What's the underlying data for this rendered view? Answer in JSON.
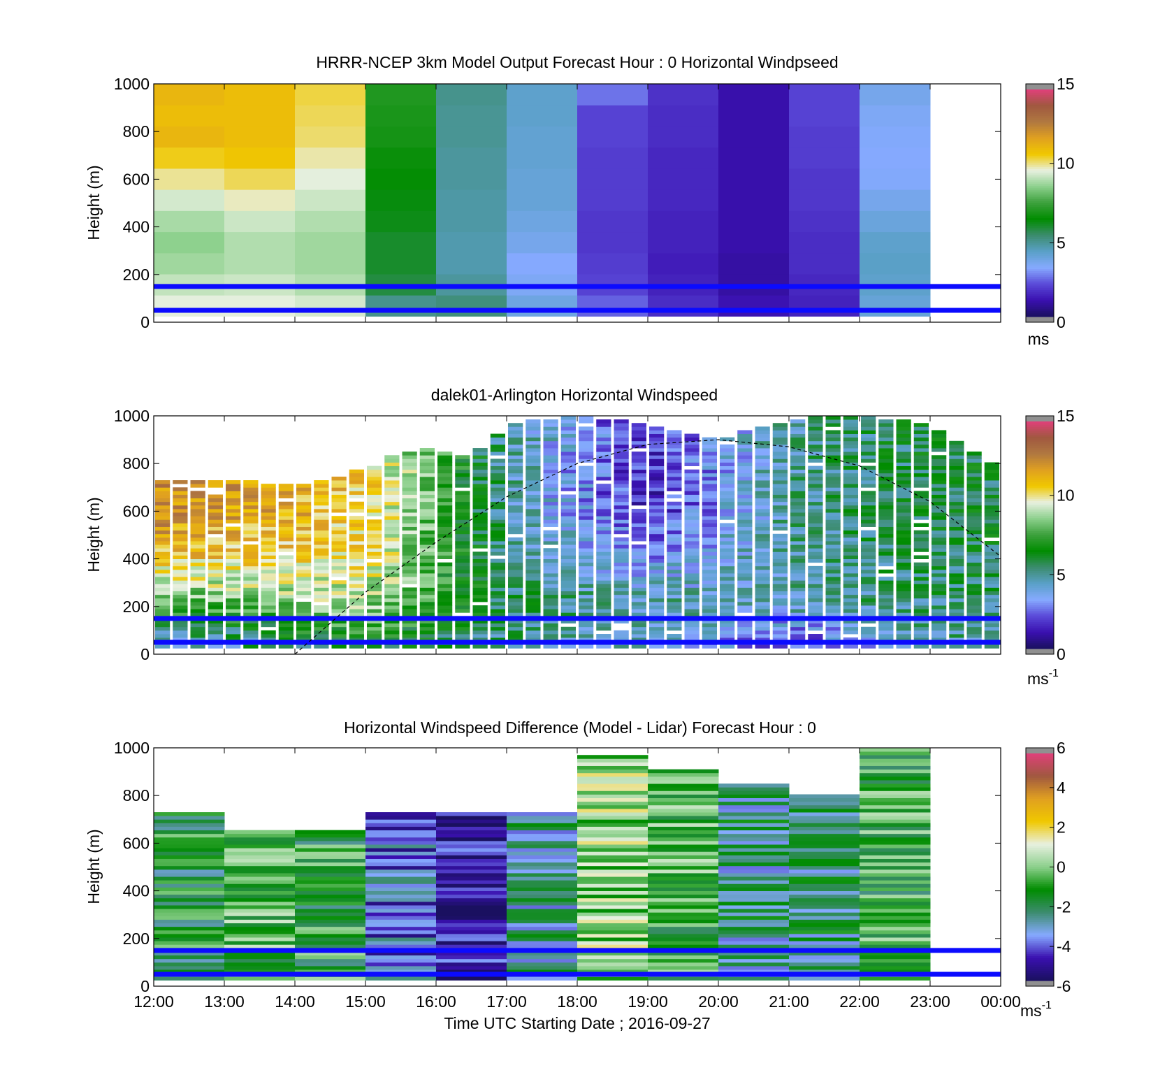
{
  "colors": {
    "overlay_lines": "#0b0bff",
    "boundary_layer_line": "#000000",
    "colormap_speed": [
      "#1a1060",
      "#3a10b0",
      "#5a4ad8",
      "#86aaff",
      "#5aa0c8",
      "#3c8c6e",
      "#008c00",
      "#3ca03c",
      "#8cd08c",
      "#e8f0e0",
      "#f0c800",
      "#e0a020",
      "#b07840",
      "#a05840",
      "#e0407a"
    ],
    "colormap_diff": [
      "#1a1060",
      "#3a10b0",
      "#86aaff",
      "#3c8c6e",
      "#008c00",
      "#8cd08c",
      "#e8f0e0",
      "#f0c800",
      "#e0a020",
      "#a05840",
      "#e0407a"
    ],
    "colorbar_end": "#909090"
  },
  "chart_data": [
    {
      "type": "heatmap",
      "title": "HRRR-NCEP 3km Model Output   Forecast Hour : 0 Horizontal Windpseed",
      "xlabel": "",
      "ylabel": "Height (m)",
      "x_ticks": [
        "12:00",
        "13:00",
        "14:00",
        "15:00",
        "16:00",
        "17:00",
        "18:00",
        "19:00",
        "20:00",
        "21:00",
        "22:00",
        "23:00",
        "00:00"
      ],
      "x_tick_labels_shown": false,
      "xlim_hours": [
        12,
        24
      ],
      "ylim": [
        0,
        1000
      ],
      "y_ticks": [
        0,
        200,
        400,
        600,
        800,
        1000
      ],
      "colorbar": {
        "min": 0,
        "max": 15,
        "ticks": [
          "0",
          "5",
          "10",
          "15"
        ],
        "unit": "ms"
      },
      "overlay_lines_m": [
        150,
        50
      ],
      "hours": [
        12,
        13,
        14,
        15,
        16,
        17,
        18,
        19,
        20,
        21,
        22
      ],
      "values_by_hour": [
        [
          9.6,
          9.2,
          8.8,
          8.6,
          8.9,
          9.4,
          10.0,
          10.6,
          11.2,
          11.0,
          11.2
        ],
        [
          9.6,
          9.3,
          9.0,
          9.0,
          9.3,
          9.8,
          10.3,
          10.8,
          11.0,
          11.0,
          11.0
        ],
        [
          9.4,
          9.0,
          8.8,
          8.8,
          9.0,
          9.3,
          9.6,
          9.9,
          10.2,
          10.3,
          10.4
        ],
        [
          5.0,
          5.8,
          6.0,
          6.0,
          6.2,
          6.3,
          6.5,
          6.6,
          6.8,
          6.9,
          7.0
        ],
        [
          5.2,
          4.8,
          4.6,
          4.6,
          4.7,
          4.7,
          4.8,
          4.8,
          4.9,
          4.9,
          5.0
        ],
        [
          3.8,
          3.4,
          3.2,
          3.6,
          3.8,
          4.0,
          4.0,
          4.1,
          4.1,
          4.2,
          4.2
        ],
        [
          2.4,
          2.0,
          1.9,
          1.8,
          1.8,
          1.9,
          1.9,
          1.9,
          2.0,
          2.0,
          2.6
        ],
        [
          1.6,
          1.4,
          1.3,
          1.4,
          1.4,
          1.5,
          1.5,
          1.5,
          1.6,
          1.6,
          1.7
        ],
        [
          1.1,
          0.9,
          0.9,
          1.0,
          1.0,
          1.0,
          1.0,
          1.0,
          1.0,
          1.0,
          1.0
        ],
        [
          1.4,
          1.5,
          1.6,
          1.6,
          1.7,
          1.8,
          1.8,
          1.9,
          1.9,
          2.0,
          2.0
        ],
        [
          4.0,
          4.2,
          4.3,
          4.2,
          3.9,
          3.6,
          3.3,
          3.2,
          3.3,
          3.4,
          3.6
        ]
      ]
    },
    {
      "type": "heatmap",
      "title": "dalek01-Arlington  Horizontal Windspeed",
      "xlabel": "",
      "ylabel": "Height (m)",
      "x_ticks": [
        "12:00",
        "13:00",
        "14:00",
        "15:00",
        "16:00",
        "17:00",
        "18:00",
        "19:00",
        "20:00",
        "21:00",
        "22:00",
        "23:00",
        "00:00"
      ],
      "x_tick_labels_shown": false,
      "xlim_hours": [
        12,
        24
      ],
      "ylim": [
        0,
        1000
      ],
      "y_ticks": [
        0,
        200,
        400,
        600,
        800,
        1000
      ],
      "colorbar": {
        "min": 0,
        "max": 15,
        "ticks": [
          "0",
          "5",
          "10",
          "15"
        ],
        "unit": "ms",
        "unit_sup": "-1"
      },
      "overlay_lines_m": [
        150,
        50
      ],
      "boundary_layer_curve": {
        "style": "dashed",
        "hours": [
          14.0,
          15.0,
          16.0,
          17.0,
          18.0,
          19.0,
          20.0,
          21.0,
          22.0,
          23.0,
          24.0
        ],
        "height_m": [
          0,
          260,
          470,
          660,
          800,
          880,
          900,
          870,
          790,
          640,
          410
        ]
      },
      "top_of_data_m": [
        [
          12.0,
          730
        ],
        [
          13.0,
          725
        ],
        [
          14.0,
          700
        ],
        [
          15.0,
          770
        ],
        [
          15.5,
          840
        ],
        [
          16.0,
          860
        ],
        [
          16.5,
          820
        ],
        [
          17.0,
          960
        ],
        [
          18.0,
          1000
        ],
        [
          19.0,
          960
        ],
        [
          20.0,
          900
        ],
        [
          21.0,
          980
        ],
        [
          22.0,
          1000
        ],
        [
          23.0,
          960
        ],
        [
          23.9,
          800
        ]
      ],
      "hourly_profile_samples": [
        {
          "hour": 12,
          "heights_m": [
            50,
            200,
            400,
            600
          ],
          "values": [
            3.8,
            7.5,
            10.8,
            12.5
          ]
        },
        {
          "hour": 15,
          "heights_m": [
            50,
            200,
            400,
            600
          ],
          "values": [
            6.5,
            8.8,
            10.2,
            10.6
          ]
        },
        {
          "hour": 17,
          "heights_m": [
            50,
            200,
            400,
            600
          ],
          "values": [
            5.0,
            5.5,
            5.0,
            4.8
          ]
        },
        {
          "hour": 19,
          "heights_m": [
            50,
            200,
            400,
            600
          ],
          "values": [
            4.2,
            4.6,
            3.0,
            1.4
          ]
        },
        {
          "hour": 21,
          "heights_m": [
            50,
            200,
            400,
            600
          ],
          "values": [
            2.0,
            4.5,
            4.6,
            4.8
          ]
        },
        {
          "hour": 23,
          "heights_m": [
            50,
            200,
            400,
            600
          ],
          "values": [
            4.8,
            5.2,
            5.6,
            5.8
          ]
        }
      ]
    },
    {
      "type": "heatmap",
      "title": "Horizontal Windspeed Difference (Model - Lidar) Forecast Hour : 0",
      "xlabel": "Time UTC  Starting Date ; 2016-09-27",
      "ylabel": "Height (m)",
      "x_ticks": [
        "12:00",
        "13:00",
        "14:00",
        "15:00",
        "16:00",
        "17:00",
        "18:00",
        "19:00",
        "20:00",
        "21:00",
        "22:00",
        "23:00",
        "00:00"
      ],
      "x_tick_labels_shown": true,
      "xlim_hours": [
        12,
        24
      ],
      "ylim": [
        0,
        1000
      ],
      "y_ticks": [
        0,
        200,
        400,
        600,
        800,
        1000
      ],
      "colorbar": {
        "min": -6,
        "max": 6,
        "ticks": [
          "-6",
          "-4",
          "-2",
          "0",
          "2",
          "4",
          "6"
        ],
        "unit": "ms",
        "unit_sup": "-1"
      },
      "overlay_lines_m": [
        150,
        50
      ],
      "hours": [
        12,
        13,
        14,
        15,
        16,
        17,
        18,
        19,
        20,
        21,
        22
      ],
      "column_top_m": [
        720,
        650,
        650,
        730,
        730,
        720,
        960,
        900,
        840,
        800,
        1000
      ],
      "mean_difference": [
        -1.6,
        -0.6,
        -1.2,
        -4.0,
        -5.2,
        -2.8,
        0.2,
        -0.8,
        -2.6,
        -2.4,
        -1.0
      ]
    }
  ]
}
